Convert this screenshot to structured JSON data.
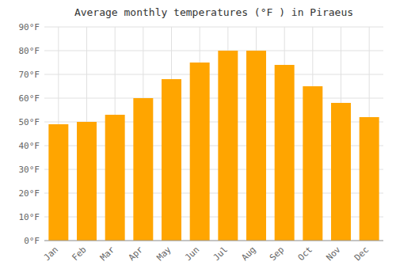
{
  "chart_data": {
    "type": "bar",
    "title": "Average monthly temperatures (°F ) in Piraeus",
    "categories": [
      "Jan",
      "Feb",
      "Mar",
      "Apr",
      "May",
      "Jun",
      "Jul",
      "Aug",
      "Sep",
      "Oct",
      "Nov",
      "Dec"
    ],
    "values": [
      49,
      50,
      53,
      60,
      68,
      75,
      80,
      80,
      74,
      65,
      58,
      52
    ],
    "color": "#FFA500",
    "ylim": [
      0,
      90
    ],
    "yticks": [
      {
        "value": 0,
        "label": "0°F"
      },
      {
        "value": 10,
        "label": "10°F"
      },
      {
        "value": 20,
        "label": "20°F"
      },
      {
        "value": 30,
        "label": "30°F"
      },
      {
        "value": 40,
        "label": "40°F"
      },
      {
        "value": 50,
        "label": "50°F"
      },
      {
        "value": 60,
        "label": "60°F"
      },
      {
        "value": 70,
        "label": "70°F"
      },
      {
        "value": 80,
        "label": "80°F"
      },
      {
        "value": 90,
        "label": "90°F"
      }
    ],
    "grid": true
  }
}
